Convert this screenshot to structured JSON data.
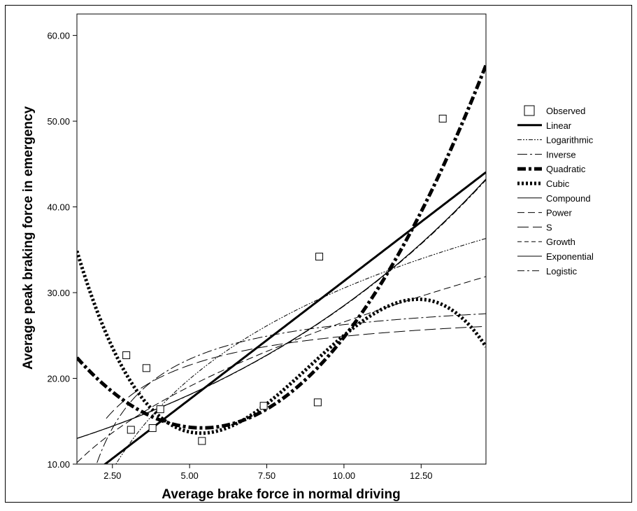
{
  "chart_data": {
    "type": "scatter",
    "xlabel": "Average brake force in normal driving",
    "ylabel": "Average peak braking force in emergency",
    "xlim": [
      1.35,
      14.6
    ],
    "ylim": [
      10,
      62.5
    ],
    "x_ticks": [
      "2.50",
      "5.00",
      "7.50",
      "10.00",
      "12.50"
    ],
    "x_tick_values": [
      2.5,
      5,
      7.5,
      10,
      12.5
    ],
    "y_ticks": [
      "10.00",
      "20.00",
      "30.00",
      "40.00",
      "50.00",
      "60.00"
    ],
    "y_tick_values": [
      10,
      20,
      30,
      40,
      50,
      60
    ],
    "legend_position": "right",
    "observed": {
      "name": "Observed",
      "points": [
        {
          "x": 2.95,
          "y": 22.7
        },
        {
          "x": 3.6,
          "y": 21.2
        },
        {
          "x": 3.1,
          "y": 14.0
        },
        {
          "x": 3.8,
          "y": 14.2
        },
        {
          "x": 4.05,
          "y": 16.4
        },
        {
          "x": 5.4,
          "y": 12.7
        },
        {
          "x": 7.4,
          "y": 16.8
        },
        {
          "x": 9.15,
          "y": 17.2
        },
        {
          "x": 9.2,
          "y": 34.2
        },
        {
          "x": 13.2,
          "y": 50.3
        }
      ]
    },
    "series": [
      {
        "name": "Linear",
        "model": "linear",
        "coef": [
          3.75,
          2.76
        ],
        "x_range": [
          1.35,
          14.6
        ],
        "color": "#000000"
      },
      {
        "name": "Logarithmic",
        "model": "logarithmic",
        "coef": [
          -4.7,
          15.3
        ],
        "x_range": [
          1.82,
          14.6
        ],
        "color": "#000000"
      },
      {
        "name": "Inverse",
        "model": "inverse",
        "coef": [
          30.3,
          -40.3
        ],
        "x_range": [
          2.0,
          14.6
        ],
        "color": "#000000"
      },
      {
        "name": "Quadratic",
        "model": "quadratic",
        "coef": [
          28.8,
          -5.4,
          0.5
        ],
        "x_range": [
          1.35,
          14.6
        ],
        "color": "#000000"
      },
      {
        "name": "Cubic",
        "model": "cubic",
        "coef": [
          55.0,
          -18.0,
          2.4,
          -0.09
        ],
        "x_range": [
          1.35,
          14.6
        ],
        "color": "#000000"
      },
      {
        "name": "Compound",
        "model": "compound",
        "coef": [
          11.5,
          1.095
        ],
        "x_range": [
          1.35,
          14.6
        ],
        "color": "#000000"
      },
      {
        "name": "Power",
        "model": "power",
        "coef": [
          8.8,
          0.48
        ],
        "x_range": [
          1.35,
          14.6
        ],
        "color": "#000000"
      },
      {
        "name": "S",
        "model": "s",
        "coef": [
          3.36,
          -1.45
        ],
        "x_range": [
          2.3,
          14.6
        ],
        "color": "#000000"
      },
      {
        "name": "Growth",
        "model": "growth",
        "coef": [
          2.4423,
          0.0907
        ],
        "x_range": [
          1.35,
          14.6
        ],
        "color": "#000000"
      },
      {
        "name": "Exponential",
        "model": "exponential",
        "coef": [
          11.5,
          0.0907
        ],
        "x_range": [
          1.35,
          14.6
        ],
        "color": "#000000"
      },
      {
        "name": "Logistic",
        "model": "logistic",
        "coef": [
          0.087,
          0.9134
        ],
        "x_range": [
          1.35,
          14.6
        ],
        "color": "#000000"
      }
    ]
  }
}
